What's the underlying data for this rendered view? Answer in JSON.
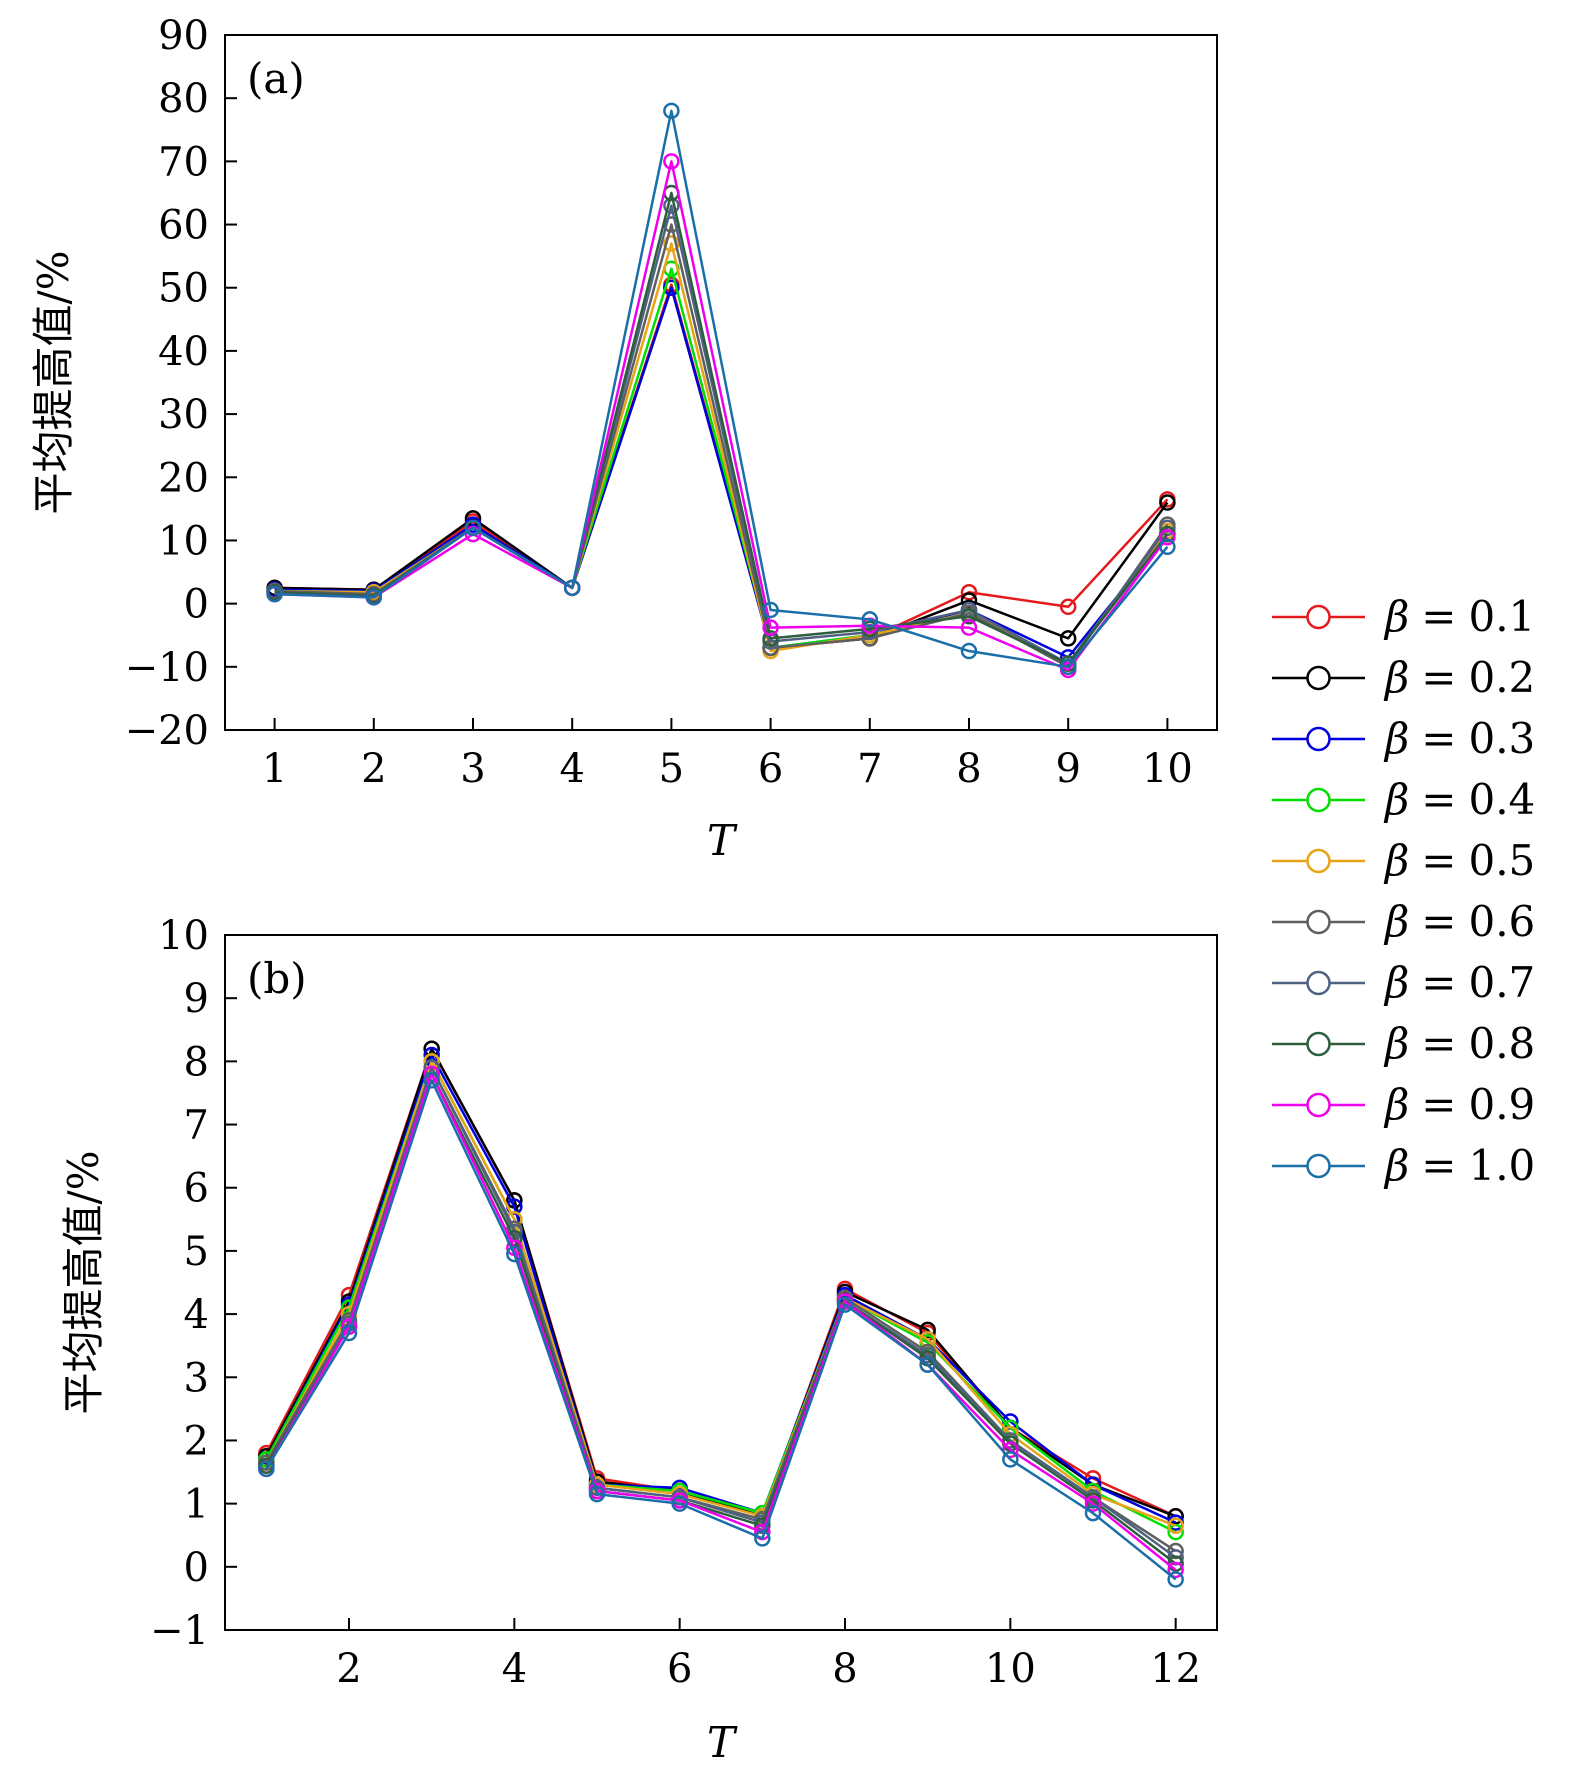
{
  "chart_data": [
    {
      "type": "line",
      "panel_label": "(a)",
      "xlabel": "T",
      "ylabel": "平均提高值/%",
      "x": [
        1,
        2,
        3,
        4,
        5,
        6,
        7,
        8,
        9,
        10
      ],
      "xlim": [
        0.5,
        10.5
      ],
      "ylim": [
        -20,
        90
      ],
      "xticks": [
        1,
        2,
        3,
        4,
        5,
        6,
        7,
        8,
        9,
        10
      ],
      "xtick_labels": [
        "1",
        "2",
        "3",
        "4",
        "5",
        "6",
        "7",
        "8",
        "9",
        "10"
      ],
      "yticks": [
        -20,
        -10,
        0,
        10,
        20,
        30,
        40,
        50,
        60,
        70,
        80,
        90
      ],
      "ytick_labels": [
        "−20",
        "−10",
        "0",
        "10",
        "20",
        "30",
        "40",
        "50",
        "60",
        "70",
        "80",
        "90"
      ],
      "series": [
        {
          "name": "β = 0.1",
          "color": "#e41a1c",
          "values": [
            2.5,
            2.2,
            13.0,
            2.5,
            50.5,
            -7.0,
            -5.5,
            1.8,
            -0.5,
            16.5
          ]
        },
        {
          "name": "β = 0.2",
          "color": "#000000",
          "values": [
            2.5,
            2.2,
            13.5,
            2.5,
            50.0,
            -7.0,
            -5.5,
            0.5,
            -5.5,
            16.0
          ]
        },
        {
          "name": "β = 0.3",
          "color": "#0000e0",
          "values": [
            2.2,
            2.0,
            12.5,
            2.5,
            50.0,
            -7.0,
            -5.0,
            -1.0,
            -8.5,
            11.0
          ]
        },
        {
          "name": "β = 0.4",
          "color": "#00e000",
          "values": [
            2.0,
            1.8,
            12.0,
            2.5,
            53.0,
            -7.0,
            -5.0,
            -1.5,
            -9.5,
            11.0
          ]
        },
        {
          "name": "β = 0.5",
          "color": "#e8a317",
          "values": [
            2.0,
            1.8,
            12.0,
            2.5,
            57.0,
            -7.5,
            -5.0,
            -1.5,
            -9.5,
            11.5
          ]
        },
        {
          "name": "β = 0.6",
          "color": "#5f5f5f",
          "values": [
            2.0,
            1.5,
            12.0,
            2.5,
            60.0,
            -7.0,
            -5.5,
            -1.5,
            -10.0,
            12.5
          ]
        },
        {
          "name": "β = 0.7",
          "color": "#4f6181",
          "values": [
            1.8,
            1.2,
            12.0,
            2.5,
            63.0,
            -6.0,
            -4.5,
            -1.0,
            -9.5,
            12.0
          ]
        },
        {
          "name": "β = 0.8",
          "color": "#2e5e3e",
          "values": [
            1.8,
            1.2,
            12.0,
            2.5,
            65.0,
            -5.5,
            -4.0,
            -2.0,
            -9.5,
            11.0
          ]
        },
        {
          "name": "β = 0.9",
          "color": "#ee00ee",
          "values": [
            1.5,
            1.0,
            11.0,
            2.5,
            70.0,
            -3.8,
            -3.5,
            -3.8,
            -10.5,
            10.5
          ]
        },
        {
          "name": "β = 1.0",
          "color": "#1a6fa8",
          "values": [
            1.5,
            1.0,
            12.0,
            2.5,
            78.0,
            -1.0,
            -2.5,
            -7.5,
            -10.0,
            9.0
          ]
        }
      ]
    },
    {
      "type": "line",
      "panel_label": "(b)",
      "xlabel": "T",
      "ylabel": "平均提高值/%",
      "x": [
        1,
        2,
        3,
        4,
        5,
        6,
        7,
        8,
        9,
        10,
        11,
        12
      ],
      "xlim": [
        0.5,
        12.5
      ],
      "ylim": [
        -1,
        10
      ],
      "xticks": [
        2,
        4,
        6,
        8,
        10,
        12
      ],
      "xtick_labels": [
        "2",
        "4",
        "6",
        "8",
        "10",
        "12"
      ],
      "yticks": [
        -1,
        0,
        1,
        2,
        3,
        4,
        5,
        6,
        7,
        8,
        9,
        10
      ],
      "ytick_labels": [
        "−1",
        "0",
        "1",
        "2",
        "3",
        "4",
        "5",
        "6",
        "7",
        "8",
        "9",
        "10"
      ],
      "series": [
        {
          "name": "β = 0.1",
          "color": "#e41a1c",
          "values": [
            1.8,
            4.3,
            8.2,
            5.8,
            1.4,
            1.2,
            0.8,
            4.4,
            3.7,
            2.2,
            1.4,
            0.8
          ]
        },
        {
          "name": "β = 0.2",
          "color": "#000000",
          "values": [
            1.75,
            4.2,
            8.2,
            5.8,
            1.35,
            1.2,
            0.8,
            4.35,
            3.75,
            2.2,
            1.3,
            0.8
          ]
        },
        {
          "name": "β = 0.3",
          "color": "#0000e0",
          "values": [
            1.7,
            4.15,
            8.1,
            5.7,
            1.3,
            1.25,
            0.85,
            4.3,
            3.6,
            2.3,
            1.3,
            0.7
          ]
        },
        {
          "name": "β = 0.4",
          "color": "#00e000",
          "values": [
            1.7,
            4.1,
            8.0,
            5.5,
            1.3,
            1.2,
            0.85,
            4.25,
            3.55,
            2.2,
            1.2,
            0.55
          ]
        },
        {
          "name": "β = 0.5",
          "color": "#e8a317",
          "values": [
            1.65,
            4.0,
            8.0,
            5.5,
            1.3,
            1.15,
            0.8,
            4.25,
            3.6,
            2.1,
            1.15,
            0.65
          ]
        },
        {
          "name": "β = 0.6",
          "color": "#5f5f5f",
          "values": [
            1.65,
            3.9,
            7.9,
            5.35,
            1.25,
            1.1,
            0.75,
            4.25,
            3.4,
            2.0,
            1.1,
            0.25
          ]
        },
        {
          "name": "β = 0.7",
          "color": "#4f6181",
          "values": [
            1.6,
            3.85,
            7.9,
            5.3,
            1.25,
            1.1,
            0.7,
            4.2,
            3.35,
            2.0,
            1.1,
            0.15
          ]
        },
        {
          "name": "β = 0.8",
          "color": "#2e5e3e",
          "values": [
            1.6,
            3.8,
            7.8,
            5.2,
            1.2,
            1.05,
            0.65,
            4.2,
            3.3,
            1.95,
            1.05,
            0.05
          ]
        },
        {
          "name": "β = 0.9",
          "color": "#ee00ee",
          "values": [
            1.55,
            3.8,
            7.8,
            5.05,
            1.2,
            1.05,
            0.55,
            4.2,
            3.2,
            1.85,
            1.0,
            -0.05
          ]
        },
        {
          "name": "β = 1.0",
          "color": "#1a6fa8",
          "values": [
            1.55,
            3.7,
            7.7,
            4.95,
            1.15,
            1.0,
            0.45,
            4.15,
            3.2,
            1.7,
            0.85,
            -0.2
          ]
        }
      ]
    }
  ],
  "legend": {
    "position": "right",
    "entries": [
      {
        "symbol": "β",
        "equals": "=",
        "value": "0.1",
        "color": "#e41a1c"
      },
      {
        "symbol": "β",
        "equals": "=",
        "value": "0.2",
        "color": "#000000"
      },
      {
        "symbol": "β",
        "equals": "=",
        "value": "0.3",
        "color": "#0000e0"
      },
      {
        "symbol": "β",
        "equals": "=",
        "value": "0.4",
        "color": "#00e000"
      },
      {
        "symbol": "β",
        "equals": "=",
        "value": "0.5",
        "color": "#e8a317"
      },
      {
        "symbol": "β",
        "equals": "=",
        "value": "0.6",
        "color": "#5f5f5f"
      },
      {
        "symbol": "β",
        "equals": "=",
        "value": "0.7",
        "color": "#4f6181"
      },
      {
        "symbol": "β",
        "equals": "=",
        "value": "0.8",
        "color": "#2e5e3e"
      },
      {
        "symbol": "β",
        "equals": "=",
        "value": "0.9",
        "color": "#ee00ee"
      },
      {
        "symbol": "β",
        "equals": "=",
        "value": "1.0",
        "color": "#1a6fa8"
      }
    ]
  }
}
